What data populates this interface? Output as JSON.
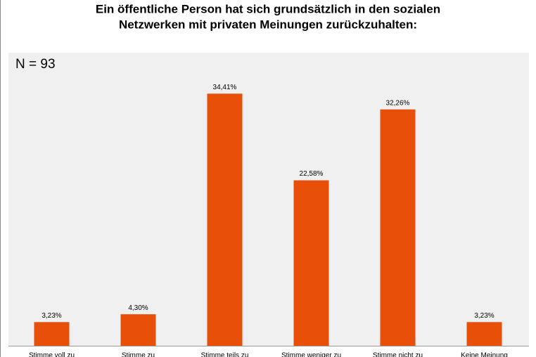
{
  "chart_data": {
    "type": "bar",
    "title": [
      "Ein öffentliche Person hat sich grundsätzlich in den sozialen",
      "Netzwerken mit privaten Meinungen zurückzuhalten:"
    ],
    "annotation": "N = 93",
    "categories": [
      "Stimme voll zu",
      "Stimme zu",
      "Stimme teils zu",
      "Stimme weniger zu",
      "Stimme nicht zu",
      "Keine Meinung"
    ],
    "values": [
      3.23,
      4.3,
      34.41,
      22.58,
      32.26,
      3.23
    ],
    "value_labels": [
      "3,23%",
      "4,30%",
      "34,41%",
      "22,58%",
      "32,26%",
      "3,23%"
    ],
    "color": "#e8500a",
    "ylim": [
      0,
      40
    ]
  }
}
